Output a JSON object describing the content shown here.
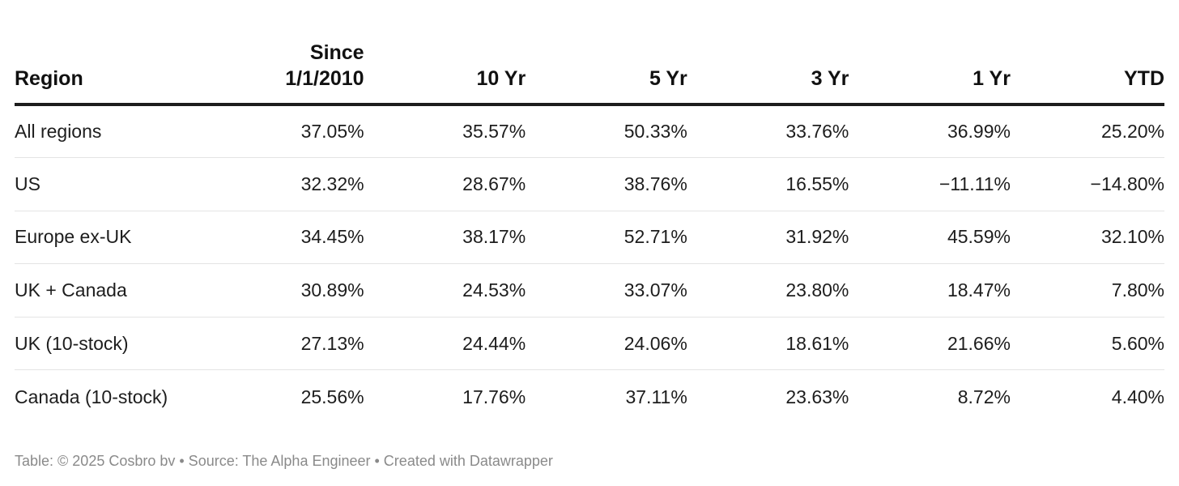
{
  "chart_data": {
    "type": "table",
    "columns": [
      "Region",
      "Since 1/1/2010",
      "10 Yr",
      "5 Yr",
      "3 Yr",
      "1 Yr",
      "YTD"
    ],
    "header_lines": {
      "region": "Region",
      "since_line1": "Since",
      "since_line2": "1/1/2010",
      "yr10": "10 Yr",
      "yr5": "5 Yr",
      "yr3": "3 Yr",
      "yr1": "1 Yr",
      "ytd": "YTD"
    },
    "rows": [
      {
        "region": "All regions",
        "values": [
          "37.05%",
          "35.57%",
          "50.33%",
          "33.76%",
          "36.99%",
          "25.20%"
        ]
      },
      {
        "region": "US",
        "values": [
          "32.32%",
          "28.67%",
          "38.76%",
          "16.55%",
          "−11.11%",
          "−14.80%"
        ]
      },
      {
        "region": "Europe ex-UK",
        "values": [
          "34.45%",
          "38.17%",
          "52.71%",
          "31.92%",
          "45.59%",
          "32.10%"
        ]
      },
      {
        "region": "UK + Canada",
        "values": [
          "30.89%",
          "24.53%",
          "33.07%",
          "23.80%",
          "18.47%",
          "7.80%"
        ]
      },
      {
        "region": "UK (10-stock)",
        "values": [
          "27.13%",
          "24.44%",
          "24.06%",
          "18.61%",
          "21.66%",
          "5.60%"
        ]
      },
      {
        "region": "Canada (10-stock)",
        "values": [
          "25.56%",
          "17.76%",
          "37.11%",
          "23.63%",
          "8.72%",
          "4.40%"
        ]
      }
    ]
  },
  "footer": {
    "text": "Table: © 2025 Cosbro bv  • Source: The Alpha Engineer • Created with Datawrapper"
  }
}
